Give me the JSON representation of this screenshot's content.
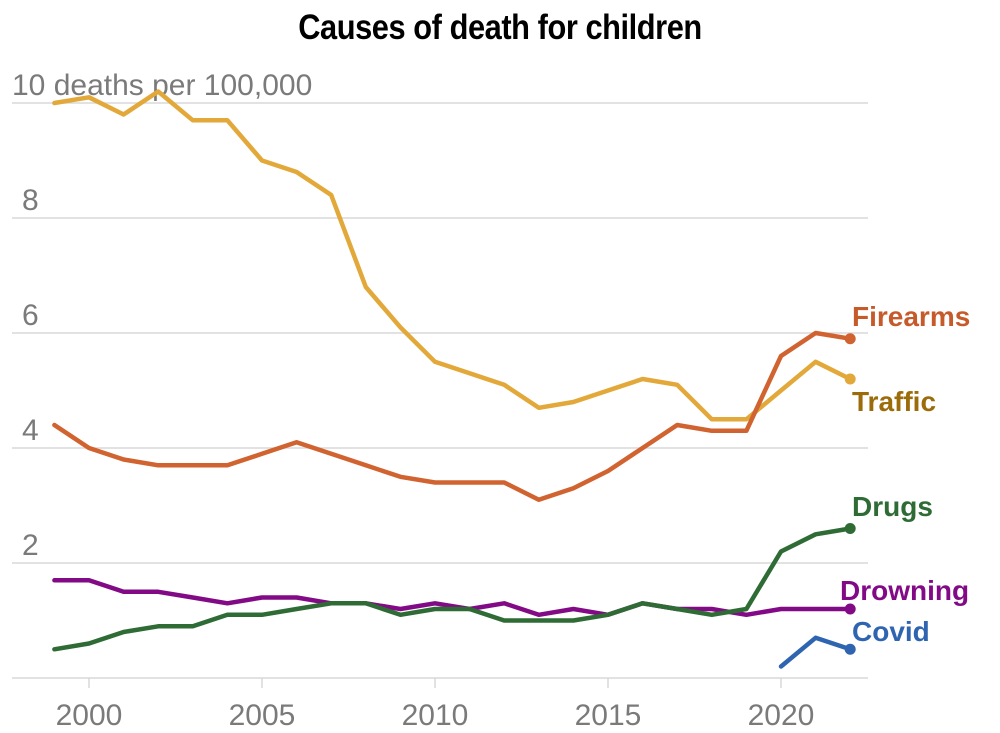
{
  "chart_data": {
    "type": "line",
    "title": "Causes of death for children",
    "xlabel": "",
    "ylabel": "deaths per 100,000",
    "ylim": [
      0,
      10
    ],
    "xlim": [
      1999,
      2022
    ],
    "grid": true,
    "y_ticks": [
      {
        "value": 10,
        "label": "10 deaths per 100,000"
      },
      {
        "value": 8,
        "label": "8"
      },
      {
        "value": 6,
        "label": "6"
      },
      {
        "value": 4,
        "label": "4"
      },
      {
        "value": 2,
        "label": "2"
      },
      {
        "value": 0,
        "label": ""
      }
    ],
    "x_ticks": [
      {
        "value": 2000,
        "label": "2000"
      },
      {
        "value": 2005,
        "label": "2005"
      },
      {
        "value": 2010,
        "label": "2010"
      },
      {
        "value": 2015,
        "label": "2015"
      },
      {
        "value": 2020,
        "label": "2020"
      }
    ],
    "legend": "direct-labels-right",
    "series": [
      {
        "name": "Traffic",
        "color": "#e3a83a",
        "label_color": "#9c6c0a",
        "x": [
          1999,
          2000,
          2001,
          2002,
          2003,
          2004,
          2005,
          2006,
          2007,
          2008,
          2009,
          2010,
          2011,
          2012,
          2013,
          2014,
          2015,
          2016,
          2017,
          2018,
          2019,
          2020,
          2021,
          2022
        ],
        "values": [
          10.0,
          10.1,
          9.8,
          10.2,
          9.7,
          9.7,
          9.0,
          8.8,
          8.4,
          6.8,
          6.1,
          5.5,
          5.3,
          5.1,
          4.7,
          4.8,
          5.0,
          5.2,
          5.1,
          4.5,
          4.5,
          5.0,
          5.5,
          5.2
        ]
      },
      {
        "name": "Firearms",
        "color": "#d0632f",
        "label_color": "#c65a2a",
        "x": [
          1999,
          2000,
          2001,
          2002,
          2003,
          2004,
          2005,
          2006,
          2007,
          2008,
          2009,
          2010,
          2011,
          2012,
          2013,
          2014,
          2015,
          2016,
          2017,
          2018,
          2019,
          2020,
          2021,
          2022
        ],
        "values": [
          4.4,
          4.0,
          3.8,
          3.7,
          3.7,
          3.7,
          3.9,
          4.1,
          3.9,
          3.7,
          3.5,
          3.4,
          3.4,
          3.4,
          3.1,
          3.3,
          3.6,
          4.0,
          4.4,
          4.3,
          4.3,
          5.6,
          6.0,
          5.9
        ]
      },
      {
        "name": "Drugs",
        "color": "#2f6b35",
        "label_color": "#2f6b35",
        "x": [
          1999,
          2000,
          2001,
          2002,
          2003,
          2004,
          2005,
          2006,
          2007,
          2008,
          2009,
          2010,
          2011,
          2012,
          2013,
          2014,
          2015,
          2016,
          2017,
          2018,
          2019,
          2020,
          2021,
          2022
        ],
        "values": [
          0.5,
          0.6,
          0.8,
          0.9,
          0.9,
          1.1,
          1.1,
          1.2,
          1.3,
          1.3,
          1.1,
          1.2,
          1.2,
          1.0,
          1.0,
          1.0,
          1.1,
          1.3,
          1.2,
          1.1,
          1.2,
          2.2,
          2.5,
          2.6
        ]
      },
      {
        "name": "Drowning",
        "color": "#830a86",
        "label_color": "#830a86",
        "x": [
          1999,
          2000,
          2001,
          2002,
          2003,
          2004,
          2005,
          2006,
          2007,
          2008,
          2009,
          2010,
          2011,
          2012,
          2013,
          2014,
          2015,
          2016,
          2017,
          2018,
          2019,
          2020,
          2021,
          2022
        ],
        "values": [
          1.7,
          1.7,
          1.5,
          1.5,
          1.4,
          1.3,
          1.4,
          1.4,
          1.3,
          1.3,
          1.2,
          1.3,
          1.2,
          1.3,
          1.1,
          1.2,
          1.1,
          1.3,
          1.2,
          1.2,
          1.1,
          1.2,
          1.2,
          1.2
        ]
      },
      {
        "name": "Covid",
        "color": "#2f65b0",
        "label_color": "#2f65b0",
        "x": [
          2020,
          2021,
          2022
        ],
        "values": [
          0.2,
          0.7,
          0.5
        ]
      }
    ]
  }
}
